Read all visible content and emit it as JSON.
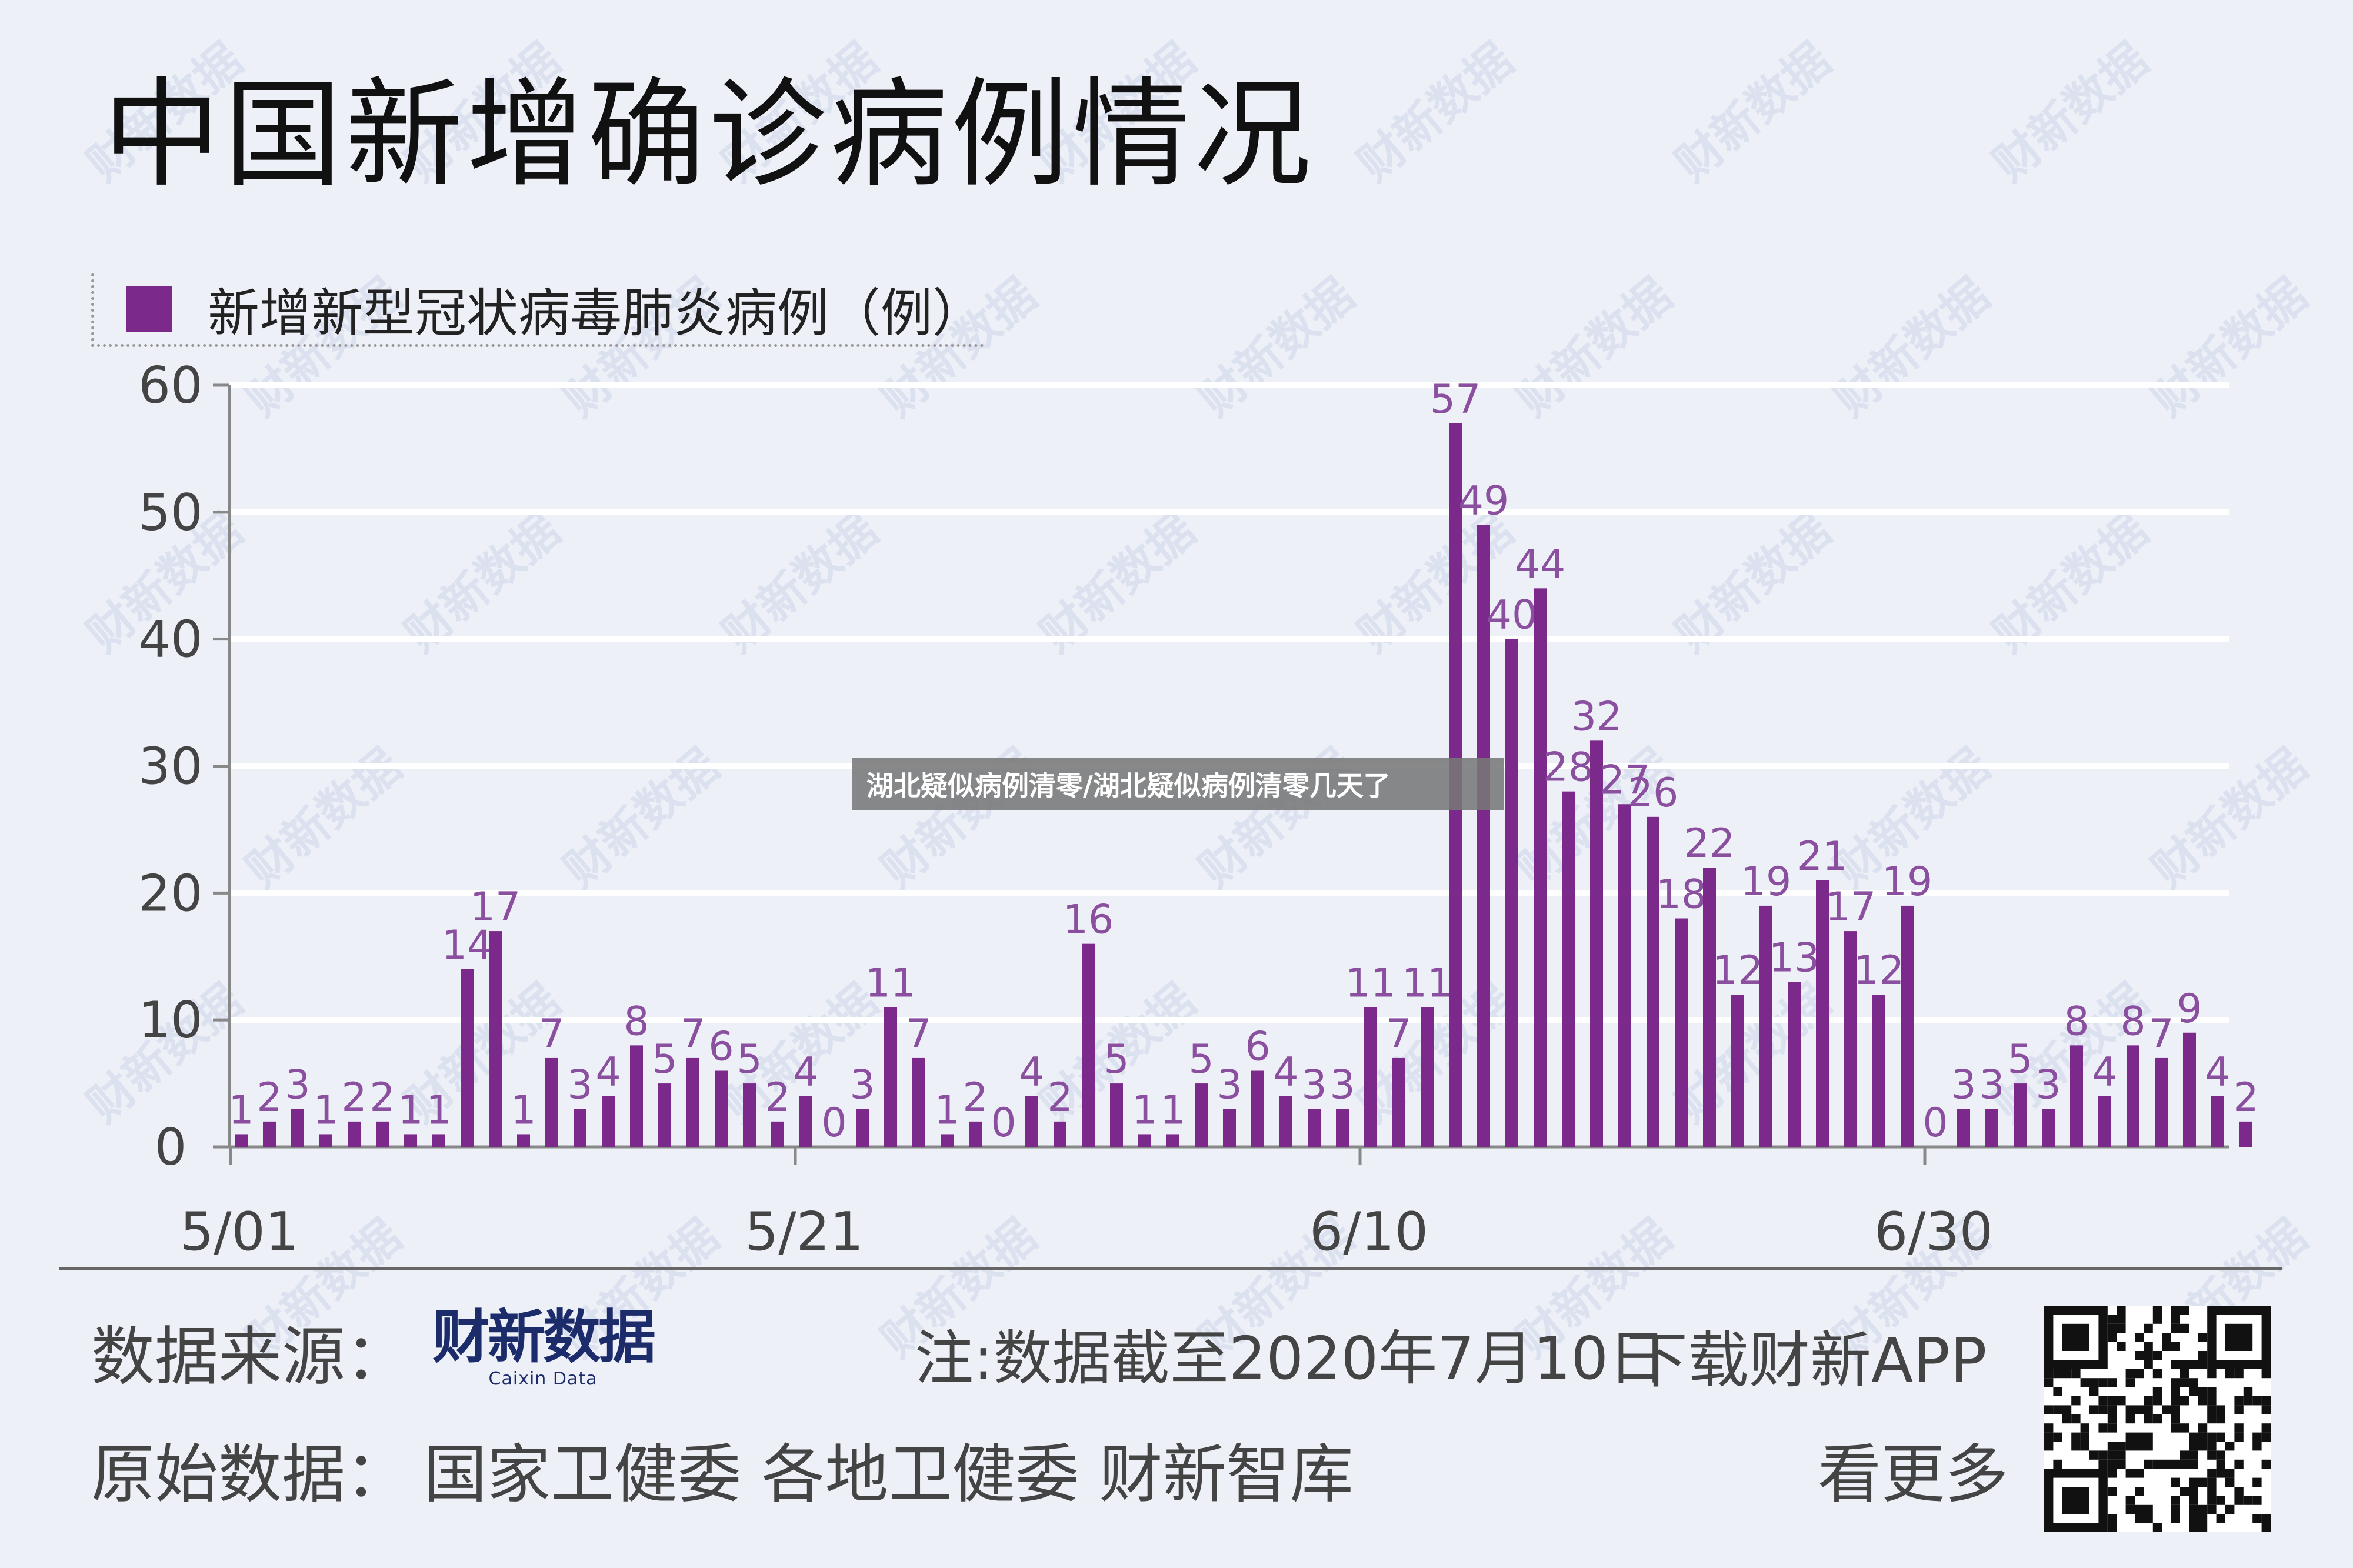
{
  "page": {
    "title": "中国新增确诊病例情况",
    "overlay_caption": "湖北疑似病例清零/湖北疑似病例清零几天了",
    "footer": {
      "source_label": "数据来源：",
      "brand_main": "财新数据",
      "brand_sub": "Caixin Data",
      "note": "注:数据截至2020年7月10日",
      "download": "下载财新APP",
      "raw_label": "原始数据：",
      "raw_sources": "国家卫健委  各地卫健委  财新智库",
      "more": "看更多"
    },
    "watermark_text": "财新数据",
    "colors": {
      "bar": "#7b2a8c",
      "label": "#8a4f9e",
      "background": "#eef0f8",
      "grid": "#ffffff",
      "axis": "#888888",
      "brand": "#1c2c6b"
    }
  },
  "chart_data": {
    "type": "bar",
    "title": "中国新增确诊病例情况",
    "series": [
      {
        "name": "新增新型冠状病毒肺炎病例（例）",
        "values": [
          1,
          2,
          3,
          1,
          2,
          2,
          1,
          1,
          14,
          17,
          1,
          7,
          3,
          4,
          8,
          5,
          7,
          6,
          5,
          2,
          4,
          0,
          3,
          11,
          7,
          1,
          2,
          0,
          4,
          2,
          16,
          5,
          1,
          1,
          5,
          3,
          6,
          4,
          3,
          3,
          11,
          7,
          11,
          57,
          49,
          40,
          44,
          28,
          32,
          27,
          26,
          18,
          22,
          12,
          19,
          13,
          21,
          17,
          12,
          19,
          0,
          3,
          3,
          5,
          3,
          8,
          4,
          8,
          7,
          9,
          4,
          2
        ]
      }
    ],
    "x_tick_labels": [
      "5/01",
      "5/21",
      "6/10",
      "6/30"
    ],
    "x_tick_indices": [
      0,
      20,
      40,
      60
    ],
    "ylim": [
      0,
      60
    ],
    "y_ticks": [
      0,
      10,
      20,
      30,
      40,
      50,
      60
    ],
    "grid": true,
    "legend": "top-left"
  }
}
